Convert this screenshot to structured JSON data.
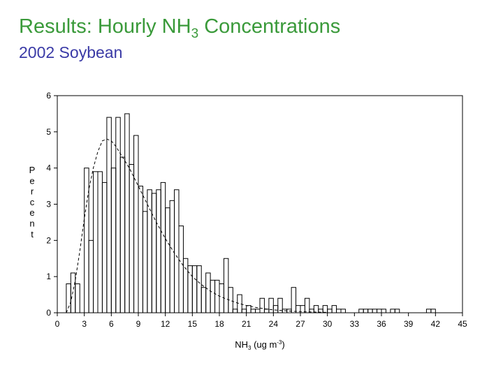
{
  "slide": {
    "title_main": "Results: Hourly NH",
    "title_sub": "3",
    "title_rest": " Concentrations",
    "subtitle": "2002 Soybean"
  },
  "colors": {
    "title": "#3a9a3a",
    "subtitle": "#3a3aa6",
    "ink": "#000000"
  },
  "chart_data": {
    "type": "histogram",
    "ylabel": "Percent",
    "xlabel": {
      "main": "NH",
      "sub": "3",
      "mid": " (ug m",
      "sup": "-3",
      "end": ")"
    },
    "xlim": [
      0,
      45
    ],
    "ylim": [
      0,
      6
    ],
    "xticks": [
      0,
      3,
      6,
      9,
      12,
      15,
      18,
      21,
      24,
      27,
      30,
      33,
      36,
      39,
      42,
      45
    ],
    "xtick_labels": [
      "0",
      "3",
      "6",
      "9",
      "12",
      "15",
      "18",
      "21",
      "24",
      "27",
      "30",
      "33",
      "36",
      "39",
      "42",
      "45"
    ],
    "yticks": [
      0,
      1,
      2,
      3,
      4,
      5,
      6
    ],
    "ytick_labels": [
      "0",
      "1",
      "2",
      "3",
      "4",
      "5",
      "6"
    ],
    "bin_width": 0.5,
    "bins": [
      {
        "x": 1.0,
        "y": 0.8
      },
      {
        "x": 1.5,
        "y": 1.1
      },
      {
        "x": 2.0,
        "y": 0.8
      },
      {
        "x": 2.5,
        "y": 0.0
      },
      {
        "x": 3.0,
        "y": 4.0
      },
      {
        "x": 3.5,
        "y": 2.0
      },
      {
        "x": 4.0,
        "y": 3.9
      },
      {
        "x": 4.5,
        "y": 3.9
      },
      {
        "x": 5.0,
        "y": 3.6
      },
      {
        "x": 5.5,
        "y": 5.4
      },
      {
        "x": 6.0,
        "y": 4.0
      },
      {
        "x": 6.5,
        "y": 5.4
      },
      {
        "x": 7.0,
        "y": 4.3
      },
      {
        "x": 7.5,
        "y": 5.5
      },
      {
        "x": 8.0,
        "y": 4.1
      },
      {
        "x": 8.5,
        "y": 4.9
      },
      {
        "x": 9.0,
        "y": 3.5
      },
      {
        "x": 9.5,
        "y": 2.8
      },
      {
        "x": 10.0,
        "y": 3.4
      },
      {
        "x": 10.5,
        "y": 3.3
      },
      {
        "x": 11.0,
        "y": 3.4
      },
      {
        "x": 11.5,
        "y": 3.6
      },
      {
        "x": 12.0,
        "y": 2.9
      },
      {
        "x": 12.5,
        "y": 3.1
      },
      {
        "x": 13.0,
        "y": 3.4
      },
      {
        "x": 13.5,
        "y": 2.4
      },
      {
        "x": 14.0,
        "y": 1.5
      },
      {
        "x": 14.5,
        "y": 1.3
      },
      {
        "x": 15.0,
        "y": 1.3
      },
      {
        "x": 15.5,
        "y": 1.3
      },
      {
        "x": 16.0,
        "y": 0.7
      },
      {
        "x": 16.5,
        "y": 1.1
      },
      {
        "x": 17.0,
        "y": 0.9
      },
      {
        "x": 17.5,
        "y": 0.9
      },
      {
        "x": 18.0,
        "y": 0.8
      },
      {
        "x": 18.5,
        "y": 1.5
      },
      {
        "x": 19.0,
        "y": 0.7
      },
      {
        "x": 19.5,
        "y": 0.1
      },
      {
        "x": 20.0,
        "y": 0.5
      },
      {
        "x": 20.5,
        "y": 0.1
      },
      {
        "x": 21.0,
        "y": 0.2
      },
      {
        "x": 21.5,
        "y": 0.1
      },
      {
        "x": 22.0,
        "y": 0.1
      },
      {
        "x": 22.5,
        "y": 0.4
      },
      {
        "x": 23.0,
        "y": 0.1
      },
      {
        "x": 23.5,
        "y": 0.4
      },
      {
        "x": 24.0,
        "y": 0.2
      },
      {
        "x": 24.5,
        "y": 0.4
      },
      {
        "x": 25.0,
        "y": 0.1
      },
      {
        "x": 25.5,
        "y": 0.1
      },
      {
        "x": 26.0,
        "y": 0.7
      },
      {
        "x": 26.5,
        "y": 0.2
      },
      {
        "x": 27.0,
        "y": 0.2
      },
      {
        "x": 27.5,
        "y": 0.4
      },
      {
        "x": 28.0,
        "y": 0.1
      },
      {
        "x": 28.5,
        "y": 0.2
      },
      {
        "x": 29.0,
        "y": 0.1
      },
      {
        "x": 29.5,
        "y": 0.2
      },
      {
        "x": 30.0,
        "y": 0.1
      },
      {
        "x": 30.5,
        "y": 0.2
      },
      {
        "x": 31.0,
        "y": 0.1
      },
      {
        "x": 31.5,
        "y": 0.1
      },
      {
        "x": 32.0,
        "y": 0.0
      },
      {
        "x": 32.5,
        "y": 0.0
      },
      {
        "x": 33.0,
        "y": 0.0
      },
      {
        "x": 33.5,
        "y": 0.1
      },
      {
        "x": 34.0,
        "y": 0.1
      },
      {
        "x": 34.5,
        "y": 0.1
      },
      {
        "x": 35.0,
        "y": 0.1
      },
      {
        "x": 35.5,
        "y": 0.1
      },
      {
        "x": 36.0,
        "y": 0.1
      },
      {
        "x": 36.5,
        "y": 0.0
      },
      {
        "x": 37.0,
        "y": 0.1
      },
      {
        "x": 37.5,
        "y": 0.1
      },
      {
        "x": 38.0,
        "y": 0.0
      },
      {
        "x": 38.5,
        "y": 0.0
      },
      {
        "x": 39.0,
        "y": 0.0
      },
      {
        "x": 39.5,
        "y": 0.0
      },
      {
        "x": 40.0,
        "y": 0.0
      },
      {
        "x": 40.5,
        "y": 0.0
      },
      {
        "x": 41.0,
        "y": 0.1
      },
      {
        "x": 41.5,
        "y": 0.1
      }
    ],
    "fitted_curve": {
      "style": "dashed",
      "x": [
        1.0,
        1.5,
        2.0,
        2.5,
        3.0,
        3.5,
        4.0,
        4.5,
        5.0,
        5.5,
        6.0,
        6.5,
        7.0,
        7.5,
        8.0,
        8.5,
        9.0,
        9.5,
        10.0,
        11.0,
        12.0,
        13.0,
        14.0,
        15.0,
        16.0,
        17.0,
        18.0,
        19.0,
        20.0,
        21.0,
        22.0,
        23.0,
        24.0,
        25.0,
        26.0,
        27.0,
        28.0,
        29.0,
        30.0
      ],
      "y": [
        0.0,
        0.3,
        0.9,
        1.7,
        2.6,
        3.4,
        4.0,
        4.45,
        4.75,
        4.8,
        4.75,
        4.6,
        4.4,
        4.2,
        4.0,
        3.75,
        3.5,
        3.25,
        3.0,
        2.5,
        2.05,
        1.65,
        1.3,
        1.0,
        0.78,
        0.6,
        0.46,
        0.36,
        0.27,
        0.2,
        0.15,
        0.11,
        0.08,
        0.06,
        0.045,
        0.033,
        0.024,
        0.017,
        0.012
      ]
    }
  }
}
